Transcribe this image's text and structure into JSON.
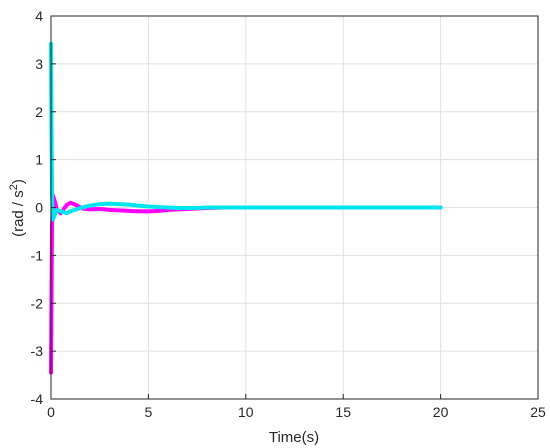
{
  "chart_data": {
    "type": "line",
    "title": "",
    "xlabel": "Time(s)",
    "ylabel": "(rad / s",
    "ylabel_superscript": "2",
    "ylabel_close": ")",
    "xlim": [
      0,
      25
    ],
    "ylim": [
      -4,
      4
    ],
    "xticks": [
      0,
      5,
      10,
      15,
      20,
      25
    ],
    "yticks": [
      -4,
      -3,
      -2,
      -1,
      0,
      1,
      2,
      3,
      4
    ],
    "grid": true,
    "series": [
      {
        "color": "#ff00ff",
        "x": [
          0,
          0.02,
          0.05,
          0.1,
          0.2,
          0.3,
          0.5,
          0.8,
          1.0,
          1.3,
          1.6,
          2.0,
          2.5,
          3.0,
          3.5,
          4.0,
          4.5,
          5.0,
          5.5,
          6.0,
          6.5,
          7.0,
          7.5,
          8.0,
          9.0,
          10,
          12,
          15,
          20
        ],
        "y": [
          -3.45,
          -2.2,
          -0.4,
          0.25,
          0.12,
          -0.05,
          -0.12,
          0.05,
          0.1,
          0.05,
          -0.02,
          -0.04,
          -0.03,
          -0.05,
          -0.06,
          -0.07,
          -0.08,
          -0.08,
          -0.07,
          -0.05,
          -0.04,
          -0.03,
          -0.02,
          -0.01,
          0.0,
          0.0,
          0.0,
          0.0,
          0.0
        ]
      },
      {
        "color": "#00e5ee",
        "x": [
          0,
          0.02,
          0.05,
          0.1,
          0.2,
          0.3,
          0.5,
          0.8,
          1.0,
          1.3,
          1.6,
          2.0,
          2.5,
          3.0,
          3.5,
          4.0,
          4.5,
          5.0,
          5.5,
          6.0,
          6.5,
          7.0,
          7.5,
          8.0,
          9.0,
          10,
          12,
          15,
          20
        ],
        "y": [
          3.42,
          2.0,
          0.3,
          -0.25,
          -0.15,
          -0.05,
          -0.08,
          -0.12,
          -0.08,
          -0.04,
          0.0,
          0.04,
          0.07,
          0.08,
          0.07,
          0.06,
          0.04,
          0.02,
          0.01,
          0.0,
          -0.01,
          -0.01,
          -0.01,
          0.0,
          0.0,
          0.0,
          0.0,
          0.0,
          0.0
        ]
      }
    ]
  }
}
